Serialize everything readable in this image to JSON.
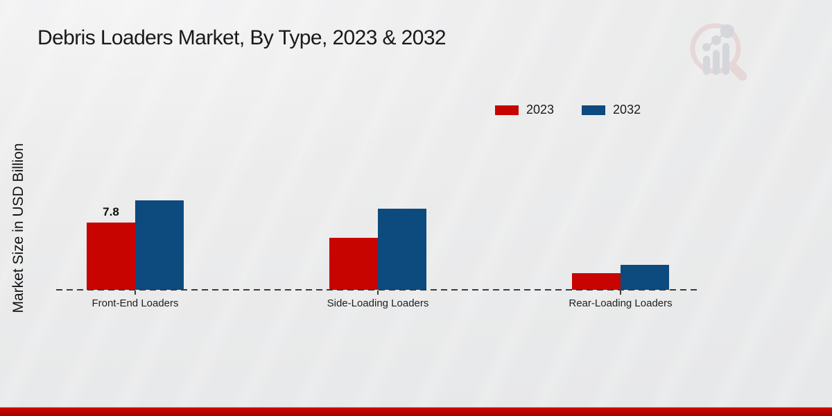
{
  "title": "Debris Loaders Market, By Type, 2023 & 2032",
  "ylabel": "Market Size in USD Billion",
  "colors": {
    "series_2023": "#c80400",
    "series_2032": "#0d4a7e",
    "background": "#ececed",
    "bottom_band": "#b90400",
    "axis": "#3b3b3b",
    "title_text": "#191919"
  },
  "legend": {
    "position": "top-right",
    "items": [
      {
        "label": "2023",
        "color": "#c80400"
      },
      {
        "label": "2032",
        "color": "#0d4a7e"
      }
    ]
  },
  "watermark_icon": "market-research-future-magnifier-bar-chart-logo",
  "chart_data": {
    "type": "bar",
    "title": "Debris Loaders Market, By Type, 2023 & 2032",
    "xlabel": "",
    "ylabel": "Market Size in USD Billion",
    "categories": [
      "Front-End Loaders",
      "Side-Loading Loaders",
      "Rear-Loading Loaders"
    ],
    "series": [
      {
        "name": "2023",
        "color": "#c80400",
        "values": [
          7.8,
          6.0,
          1.9
        ]
      },
      {
        "name": "2032",
        "color": "#0d4a7e",
        "values": [
          10.4,
          9.4,
          2.9
        ]
      }
    ],
    "bar_labels": [
      {
        "series": 0,
        "category": 0,
        "text": "7.8"
      }
    ],
    "ylim": [
      0,
      12
    ],
    "grid": false,
    "axis_style": "dashed-baseline-only",
    "legend_position": "top-right"
  }
}
